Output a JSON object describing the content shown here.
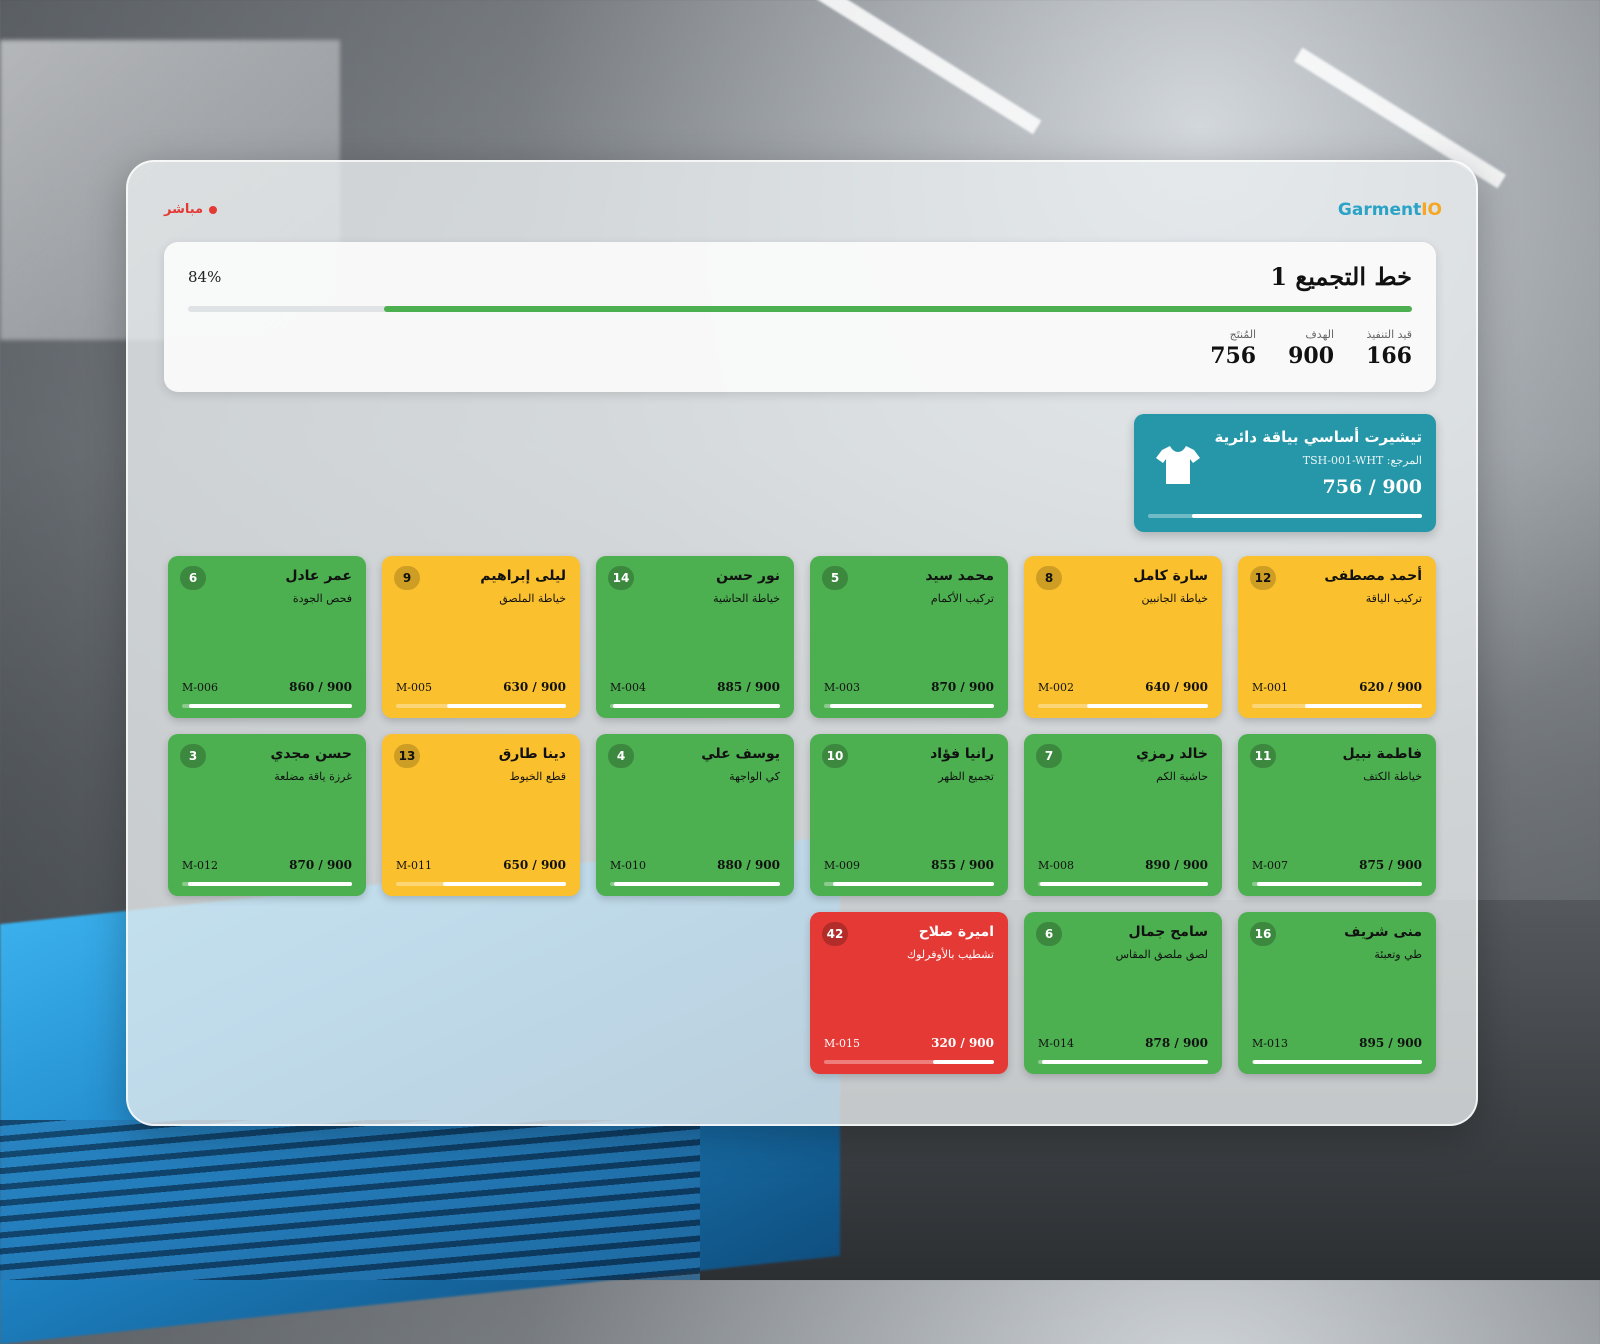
{
  "brand": {
    "part1": "Garment",
    "part2": "IO"
  },
  "status": {
    "live_label": "مباشر"
  },
  "summary": {
    "title": "خط التجميع 1",
    "percent_label": "84%",
    "progress_fraction": 0.84,
    "stats": [
      {
        "label": "المُنتَج",
        "value": "756"
      },
      {
        "label": "الهدف",
        "value": "900"
      },
      {
        "label": "قيد التنفيذ",
        "value": "166"
      }
    ]
  },
  "product": {
    "name": "تيشيرت أساسي بياقة دائرية",
    "ref": "المرجع: TSH-001-WHT",
    "count": "756 / 900",
    "progress_fraction": 0.84,
    "icon": "tshirt-icon"
  },
  "colors": {
    "green": "#4caf50",
    "yellow": "#fbc02d",
    "red": "#e53935",
    "teal": "#2597a9"
  },
  "workers": [
    {
      "name": "أحمد مصطفى",
      "task": "تركيب الياقة",
      "badge": "12",
      "id": "M-001",
      "progress": "620 / 900",
      "fraction": 0.689,
      "status": "yellow"
    },
    {
      "name": "سارة كامل",
      "task": "خياطة الجانبين",
      "badge": "8",
      "id": "M-002",
      "progress": "640 / 900",
      "fraction": 0.711,
      "status": "yellow"
    },
    {
      "name": "محمد سيد",
      "task": "تركيب الأكمام",
      "badge": "5",
      "id": "M-003",
      "progress": "870 / 900",
      "fraction": 0.967,
      "status": "green"
    },
    {
      "name": "نور حسن",
      "task": "خياطة الحاشية",
      "badge": "14",
      "id": "M-004",
      "progress": "885 / 900",
      "fraction": 0.983,
      "status": "green"
    },
    {
      "name": "ليلى إبراهيم",
      "task": "خياطة الملصق",
      "badge": "9",
      "id": "M-005",
      "progress": "630 / 900",
      "fraction": 0.7,
      "status": "yellow"
    },
    {
      "name": "عمر عادل",
      "task": "فحص الجودة",
      "badge": "6",
      "id": "M-006",
      "progress": "860 / 900",
      "fraction": 0.956,
      "status": "green"
    },
    {
      "name": "فاطمة نبيل",
      "task": "خياطة الكتف",
      "badge": "11",
      "id": "M-007",
      "progress": "875 / 900",
      "fraction": 0.972,
      "status": "green"
    },
    {
      "name": "خالد رمزي",
      "task": "حاشية الكم",
      "badge": "7",
      "id": "M-008",
      "progress": "890 / 900",
      "fraction": 0.989,
      "status": "green"
    },
    {
      "name": "رانيا فؤاد",
      "task": "تجميع الظهر",
      "badge": "10",
      "id": "M-009",
      "progress": "855 / 900",
      "fraction": 0.95,
      "status": "green"
    },
    {
      "name": "يوسف علي",
      "task": "كي الواجهة",
      "badge": "4",
      "id": "M-010",
      "progress": "880 / 900",
      "fraction": 0.978,
      "status": "green"
    },
    {
      "name": "دينا طارق",
      "task": "قطع الخيوط",
      "badge": "13",
      "id": "M-011",
      "progress": "650 / 900",
      "fraction": 0.722,
      "status": "yellow"
    },
    {
      "name": "حسن مجدي",
      "task": "غرزة ياقة مضلعة",
      "badge": "3",
      "id": "M-012",
      "progress": "870 / 900",
      "fraction": 0.967,
      "status": "green"
    },
    {
      "name": "منى شريف",
      "task": "طي وتعبئة",
      "badge": "16",
      "id": "M-013",
      "progress": "895 / 900",
      "fraction": 0.994,
      "status": "green"
    },
    {
      "name": "سامح جمال",
      "task": "لصق ملصق المقاس",
      "badge": "6",
      "id": "M-014",
      "progress": "878 / 900",
      "fraction": 0.976,
      "status": "green"
    },
    {
      "name": "اميرة صلاح",
      "task": "تشطيب بالأوفرلوك",
      "badge": "42",
      "id": "M-015",
      "progress": "320 / 900",
      "fraction": 0.356,
      "status": "red"
    }
  ]
}
